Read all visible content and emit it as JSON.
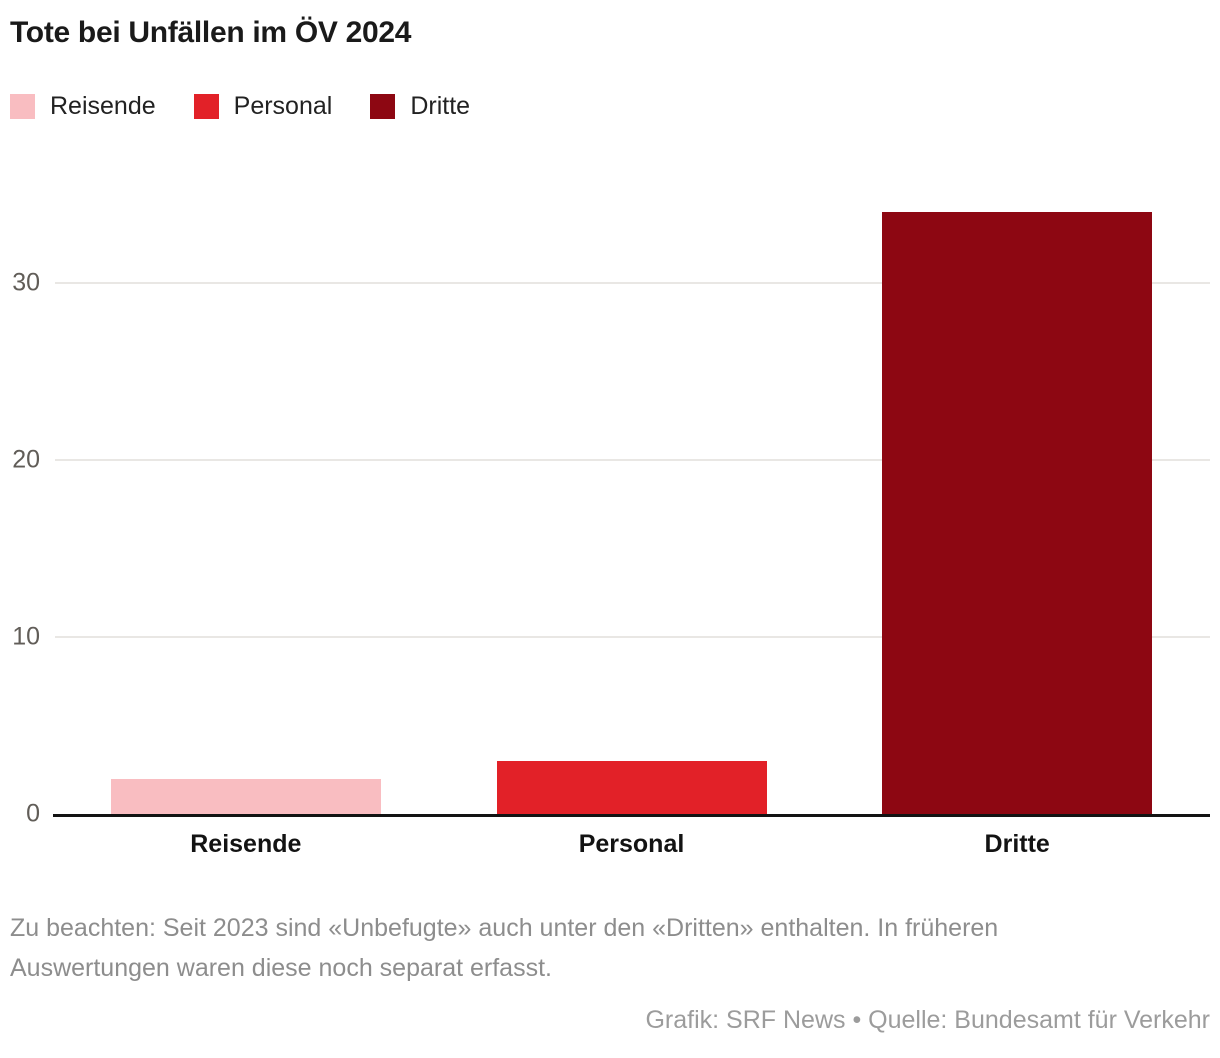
{
  "title": "Tote bei Unfällen im ÖV 2024",
  "legend": [
    {
      "label": "Reisende",
      "color": "#f9bdc1"
    },
    {
      "label": "Personal",
      "color": "#e22128"
    },
    {
      "label": "Dritte",
      "color": "#8d0712"
    }
  ],
  "footnote": "Zu beachten: Seit 2023 sind «Unbefugte» auch unter den «Dritten» enthalten. In früheren Auswertungen waren diese noch separat erfasst.",
  "credit": "Grafik: SRF News • Quelle: Bundesamt für Verkehr",
  "colors": {
    "accent_light": "#f9bdc1",
    "accent_mid": "#e22128",
    "accent_dark": "#8d0712",
    "gridline": "#e9e7e4",
    "axis": "#131313",
    "tick_text": "#615d58",
    "footnote_text": "#8d8d8d"
  },
  "chart_data": {
    "type": "bar",
    "title": "Tote bei Unfällen im ÖV 2024",
    "categories": [
      "Reisende",
      "Personal",
      "Dritte"
    ],
    "values": [
      2,
      3,
      34
    ],
    "colors": [
      "#f9bdc1",
      "#e22128",
      "#8d0712"
    ],
    "xlabel": "",
    "ylabel": "",
    "yticks": [
      0,
      10,
      20,
      30
    ],
    "ylim": [
      0,
      36.6
    ],
    "grid": "horizontal",
    "legend_position": "top"
  }
}
